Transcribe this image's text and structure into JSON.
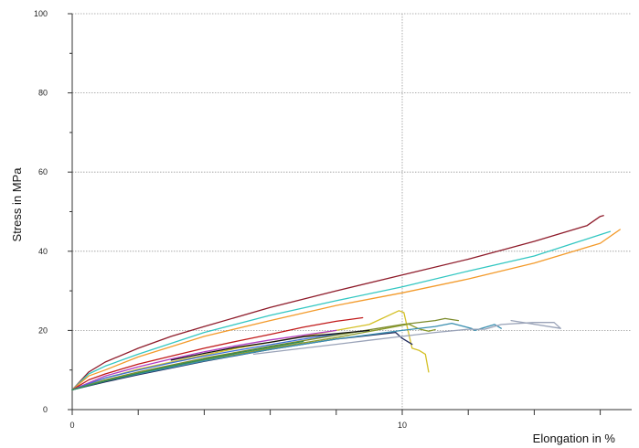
{
  "chart_data": {
    "type": "line",
    "title": "",
    "xlabel": "Elongation in %",
    "ylabel": "Stress in MPa",
    "xlim": [
      0,
      16.7
    ],
    "ylim": [
      0,
      100
    ],
    "x_tick_labels": [
      {
        "value": 0,
        "label": "0"
      },
      {
        "value": 10,
        "label": "10"
      }
    ],
    "x_minor_ticks": [
      2,
      4,
      6,
      8,
      12,
      14,
      16
    ],
    "y_tick_labels": [
      {
        "value": 0,
        "label": "0"
      },
      {
        "value": 20,
        "label": "20"
      },
      {
        "value": 40,
        "label": "40"
      },
      {
        "value": 60,
        "label": "60"
      },
      {
        "value": 80,
        "label": "80"
      },
      {
        "value": 100,
        "label": "100"
      }
    ],
    "y_minor_ticks": [
      10,
      30,
      50,
      70,
      90
    ],
    "grid": {
      "x": [
        10
      ],
      "y": [
        20,
        40,
        60,
        80,
        100
      ]
    },
    "legend": "none",
    "series": [
      {
        "color": "#8e1b2a",
        "x": [
          0,
          0.5,
          1,
          2,
          3,
          4,
          6,
          8,
          10,
          12,
          14,
          15.6,
          16.0,
          16.1
        ],
        "y": [
          5,
          9.5,
          12,
          15.5,
          18.5,
          21,
          25.8,
          30,
          34,
          38,
          42.5,
          46.5,
          48.8,
          49
        ]
      },
      {
        "color": "#33c7c2",
        "x": [
          0,
          0.5,
          1,
          2,
          4,
          6,
          8,
          10,
          12,
          14,
          16.3
        ],
        "y": [
          5,
          9,
          11,
          14,
          19.5,
          23.8,
          27.5,
          31,
          35,
          38.8,
          45
        ]
      },
      {
        "color": "#f39a2a",
        "x": [
          0,
          0.5,
          1,
          2,
          4,
          6,
          8,
          10,
          12,
          14,
          16.0,
          16.6
        ],
        "y": [
          5,
          8.5,
          10,
          13.3,
          18.5,
          22.5,
          26.3,
          29.5,
          33,
          37,
          42,
          45.5
        ]
      },
      {
        "color": "#c11a1a",
        "x": [
          0,
          0.5,
          1,
          2,
          3,
          4,
          5,
          6,
          7,
          8,
          8.8
        ],
        "y": [
          5,
          7.5,
          9,
          11.5,
          13.5,
          15.5,
          17.3,
          19,
          20.8,
          22.3,
          23.2
        ]
      },
      {
        "color": "#d4c026",
        "x": [
          0,
          1,
          2,
          3,
          4,
          5,
          6,
          7,
          8,
          9,
          9.9,
          10.05,
          10.3,
          10.5,
          10.7,
          10.8
        ],
        "y": [
          5,
          8,
          10.2,
          12,
          13.8,
          15.5,
          17,
          18.5,
          20,
          21.5,
          25,
          24.5,
          15.5,
          15,
          14,
          9.5
        ]
      },
      {
        "color": "#b03ac2",
        "x": [
          0,
          1,
          2,
          3,
          4,
          5,
          6,
          7,
          8
        ],
        "y": [
          5,
          8.5,
          10.8,
          12.8,
          14.6,
          16.2,
          17.6,
          18.8,
          20
        ]
      },
      {
        "color": "#3a6fd8",
        "x": [
          0,
          1,
          2,
          3,
          4,
          5,
          6,
          7,
          8,
          9
        ],
        "y": [
          5,
          8,
          10,
          11.8,
          13.5,
          15,
          16.4,
          17.8,
          19,
          20
        ]
      },
      {
        "color": "#7b8a2a",
        "x": [
          0,
          1,
          2,
          4,
          6,
          8,
          10,
          11,
          11.3,
          11.7
        ],
        "y": [
          5,
          7.5,
          9.5,
          13,
          16,
          18.8,
          21.5,
          22.5,
          23,
          22.5
        ]
      },
      {
        "color": "#8a9a2a",
        "x": [
          0,
          1,
          2,
          4,
          6,
          8,
          9.5,
          10.2,
          10.5,
          10.8,
          11.0
        ],
        "y": [
          5,
          7.3,
          9.2,
          12.5,
          15.5,
          18.2,
          20.5,
          21.6,
          20.4,
          19.8,
          20.2
        ]
      },
      {
        "color": "#1f2a5c",
        "x": [
          0,
          1,
          2,
          4,
          6,
          8,
          9.8,
          10.0,
          10.3
        ],
        "y": [
          5,
          7,
          8.8,
          12.2,
          15.2,
          17.8,
          19.5,
          18.0,
          16.5
        ]
      },
      {
        "color": "#3a8fb0",
        "x": [
          0,
          1,
          2,
          4,
          6,
          8,
          10,
          11,
          11.5,
          12.1,
          12.2,
          12.8,
          13.0
        ],
        "y": [
          5,
          7.2,
          9,
          12.3,
          15.2,
          17.8,
          20,
          21,
          21.8,
          20.5,
          20,
          21.5,
          20.5
        ]
      },
      {
        "color": "#9aa3b8",
        "x": [
          5.5,
          7,
          8,
          9,
          10,
          11,
          12,
          12.5,
          13,
          14,
          14.6,
          14.8,
          13.3
        ],
        "y": [
          14,
          15.5,
          16.5,
          17.5,
          18.5,
          19.5,
          20.3,
          20.3,
          21.5,
          22,
          22,
          20.5,
          22.5
        ]
      },
      {
        "color": "#111111",
        "x": [
          3,
          4,
          5,
          6,
          7,
          8,
          9
        ],
        "y": [
          12.5,
          14.2,
          15.8,
          17.0,
          18.4,
          19.2,
          20
        ]
      },
      {
        "color": "#2e8b57",
        "x": [
          0,
          1,
          2,
          3,
          4,
          5,
          6,
          7
        ],
        "y": [
          5,
          7.2,
          9.2,
          11,
          12.7,
          14.3,
          15.8,
          17.2
        ]
      }
    ]
  }
}
